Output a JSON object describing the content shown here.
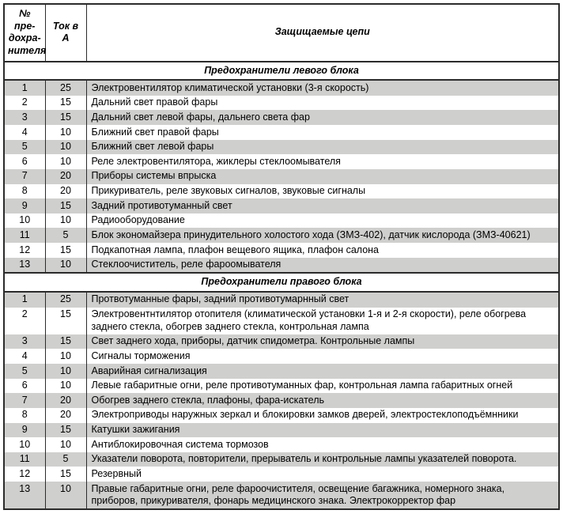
{
  "header": {
    "col_num": "№ пре-дохра-нителя",
    "col_amp": "Ток в А",
    "col_desc": "Защищаемые цепи"
  },
  "sections": [
    {
      "title": "Предохранители левого блока",
      "rows": [
        {
          "num": "1",
          "amp": "25",
          "desc": "Электровентилятор климатической установки (3-я скорость)"
        },
        {
          "num": "2",
          "amp": "15",
          "desc": "Дальний свет правой фары"
        },
        {
          "num": "3",
          "amp": "15",
          "desc": "Дальний свет левой фары, дальнего света фар"
        },
        {
          "num": "4",
          "amp": "10",
          "desc": "Ближний свет правой фары"
        },
        {
          "num": "5",
          "amp": "10",
          "desc": "Ближний свет левой фары"
        },
        {
          "num": "6",
          "amp": "10",
          "desc": "Реле электровентилятора, жиклеры стеклоомывателя"
        },
        {
          "num": "7",
          "amp": "20",
          "desc": "Приборы системы впрыска"
        },
        {
          "num": "8",
          "amp": "20",
          "desc": "Прикуриватель, реле звуковых сигналов, звуковые сигналы"
        },
        {
          "num": "9",
          "amp": "15",
          "desc": "Задний противотуманный свет"
        },
        {
          "num": "10",
          "amp": "10",
          "desc": "Радиооборудование"
        },
        {
          "num": "11",
          "amp": "5",
          "desc": "Блок экономайзера принудительного холостого хода (ЗМЗ-402), датчик кислорода (ЗМЗ-40621)"
        },
        {
          "num": "12",
          "amp": "15",
          "desc": "Подкапотная лампа, плафон вещевого ящика, плафон салона"
        },
        {
          "num": "13",
          "amp": "10",
          "desc": "Стеклоочиститель, реле фароомывателя"
        }
      ]
    },
    {
      "title": "Предохранители правого блока",
      "rows": [
        {
          "num": "1",
          "amp": "25",
          "desc": "Протвотуманные фары, задний противотумарнный свет"
        },
        {
          "num": "2",
          "amp": "15",
          "desc": "Электровентнтилятор отопителя (климатической установки 1-я и 2-я скорости), реле обогрева заднего стекла, обогрев заднего стекла, контрольная лампа"
        },
        {
          "num": "3",
          "amp": "15",
          "desc": "Свет заднего хода, приборы, датчик спидометра. Контрольные лампы"
        },
        {
          "num": "4",
          "amp": "10",
          "desc": "Сигналы торможения"
        },
        {
          "num": "5",
          "amp": "10",
          "desc": "Аварийная сигнализация"
        },
        {
          "num": "6",
          "amp": "10",
          "desc": "Левые габаритные огни, реле противотуманных фар, контрольная лампа габаритных огней"
        },
        {
          "num": "7",
          "amp": "20",
          "desc": "Обогрев заднего стекла, плафоны, фара-искатель"
        },
        {
          "num": "8",
          "amp": "20",
          "desc": "Электроприводы наружных зеркал и блокировки замков дверей, электростеклоподъёмнники"
        },
        {
          "num": "9",
          "amp": "15",
          "desc": "Катушки зажигания"
        },
        {
          "num": "10",
          "amp": "10",
          "desc": "Антиблокировочная система тормозов"
        },
        {
          "num": "11",
          "amp": "5",
          "desc": "Указатели поворота, повторители, прерыватель и контрольные лампы указателей поворота."
        },
        {
          "num": "12",
          "amp": "15",
          "desc": "Резервный"
        },
        {
          "num": "13",
          "amp": "10",
          "desc": "Правые габаритные огни, реле фароочистителя, освещение багажника, номерного знака, приборов, прикуривателя, фонарь медицинского знака. Электрокорректор фар"
        }
      ]
    }
  ]
}
